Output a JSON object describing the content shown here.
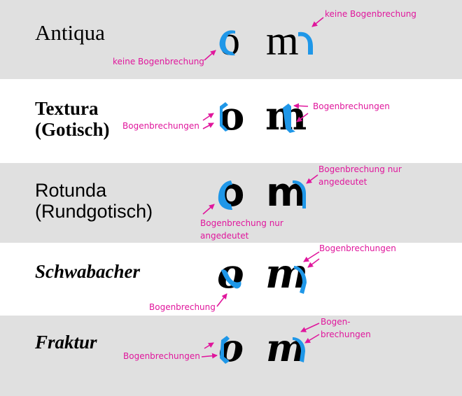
{
  "colors": {
    "band_grey": "#e0e0e0",
    "accent_blue": "#1f97e8",
    "annotation_magenta": "#e0169c",
    "ink": "#000000"
  },
  "rows": [
    {
      "script": "Antiqua",
      "script_line2": "",
      "notes": {
        "a": "keine Bogenbrechung",
        "b": "keine Bogenbrechung"
      }
    },
    {
      "script": "Textura",
      "script_line2": "(Gotisch)",
      "notes": {
        "a": "Bogenbrechungen",
        "b": "Bogenbrechungen"
      }
    },
    {
      "script": "Rotunda",
      "script_line2": "(Rundgotisch)",
      "notes": {
        "a_line1": "Bogenbrechung nur",
        "a_line2": "angedeutet",
        "b_line1": "Bogenbrechung nur",
        "b_line2": "angedeutet"
      }
    },
    {
      "script": "Schwabacher",
      "script_line2": "",
      "notes": {
        "a": "Bogenbrechung",
        "b": "Bogenbrechungen"
      }
    },
    {
      "script": "Fraktur",
      "script_line2": "",
      "notes": {
        "a": "Bogenbrechungen",
        "b_line1": "Bogen-",
        "b_line2": "brechungen"
      }
    }
  ],
  "letters": {
    "o": "o",
    "m": "m"
  }
}
